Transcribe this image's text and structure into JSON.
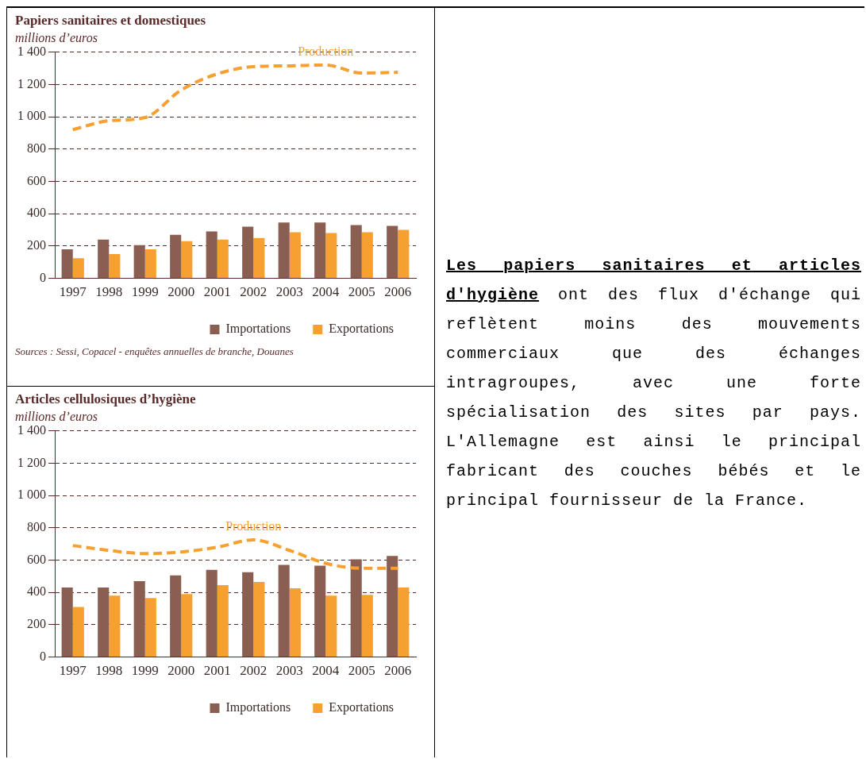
{
  "chart_data": [
    {
      "type": "bar",
      "title": "Papiers sanitaires et domestiques",
      "ylabel": "millions d’euros",
      "categories": [
        "1997",
        "1998",
        "1999",
        "2000",
        "2001",
        "2002",
        "2003",
        "2004",
        "2005",
        "2006"
      ],
      "series": [
        {
          "name": "Importations",
          "color": "#8b5e52",
          "values": [
            180,
            240,
            205,
            270,
            290,
            320,
            345,
            345,
            330,
            325
          ]
        },
        {
          "name": "Exportations",
          "color": "#f5a031",
          "values": [
            125,
            150,
            180,
            230,
            240,
            250,
            285,
            280,
            285,
            300
          ]
        },
        {
          "name": "Production",
          "type": "line",
          "color": "#f5a031",
          "line_style": "dashed",
          "marker": "none",
          "values": [
            920,
            975,
            995,
            1165,
            1265,
            1310,
            1315,
            1320,
            1270,
            1275
          ]
        }
      ],
      "ylim": [
        0,
        1400
      ],
      "yticks": [
        0,
        200,
        400,
        600,
        800,
        {
          "value": 1000,
          "label": "1 000"
        },
        {
          "value": 1200,
          "label": "1 200"
        },
        {
          "value": 1400,
          "label": "1 400"
        }
      ],
      "grid": "y",
      "legend": "bottom",
      "annotations": [
        "Sources : Sessi, Copacel - enquêtes annuelles de branche, Douanes"
      ]
    },
    {
      "type": "bar",
      "title": "Articles cellulosiques d’hygiène",
      "ylabel": "millions d’euros",
      "categories": [
        "1997",
        "1998",
        "1999",
        "2000",
        "2001",
        "2002",
        "2003",
        "2004",
        "2005",
        "2006"
      ],
      "series": [
        {
          "name": "Importations",
          "color": "#8b5e52",
          "values": [
            430,
            430,
            470,
            505,
            540,
            525,
            570,
            565,
            605,
            625
          ]
        },
        {
          "name": "Exportations",
          "color": "#f5a031",
          "values": [
            310,
            380,
            365,
            390,
            445,
            465,
            425,
            380,
            385,
            430
          ]
        },
        {
          "name": "Production",
          "type": "line",
          "color": "#f5a031",
          "line_style": "dashed",
          "marker": "none",
          "values": [
            690,
            660,
            640,
            650,
            680,
            725,
            660,
            580,
            550,
            550
          ]
        }
      ],
      "ylim": [
        0,
        1400
      ],
      "yticks": [
        0,
        200,
        400,
        600,
        800,
        {
          "value": 1000,
          "label": "1 000"
        },
        {
          "value": 1200,
          "label": "1 200"
        },
        {
          "value": 1400,
          "label": "1 400"
        }
      ],
      "grid": "y",
      "legend": "bottom"
    },
    {
      "type": "other",
      "title": "Les papiers sanitaires et articles d'hygiène",
      "annotations": [
        "ont des flux d'échange qui reflètent moins des mouvements commerciaux que des échanges intragroupes, avec une forte spécialisation des sites par pays. L'Allemagne est ainsi le principal fabricant des couches bébés et le principal fournisseur de la France."
      ]
    }
  ]
}
